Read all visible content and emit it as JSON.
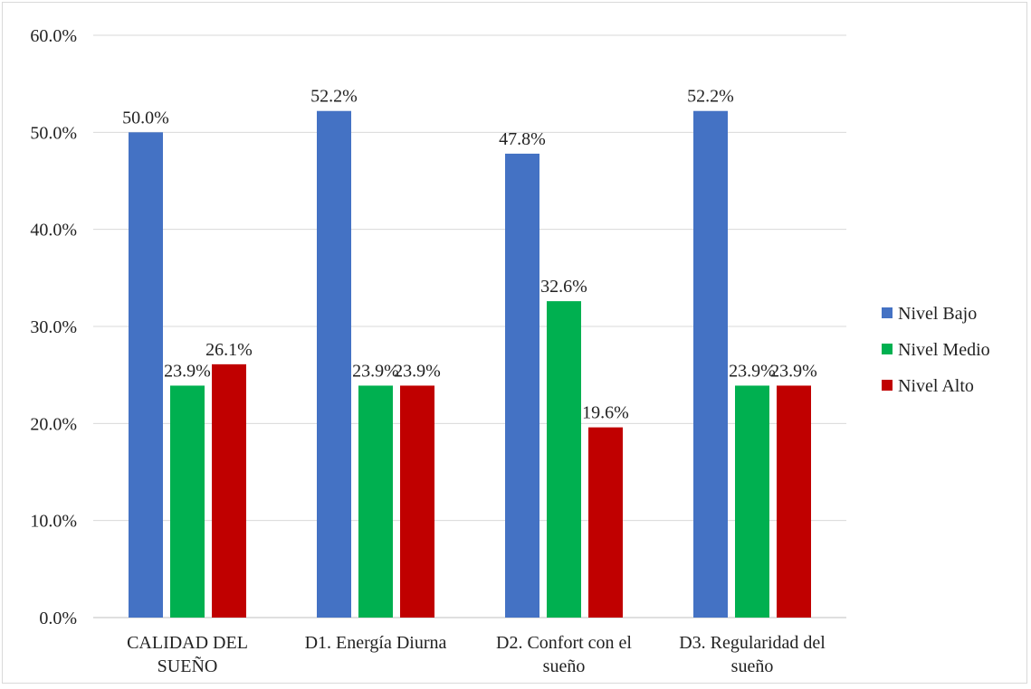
{
  "chart_data": {
    "type": "bar",
    "categories": [
      [
        "CALIDAD DEL",
        "SUEÑO"
      ],
      [
        "D1. Energía Diurna"
      ],
      [
        "D2. Confort con el",
        "sueño"
      ],
      [
        "D3. Regularidad del",
        "sueño"
      ]
    ],
    "series": [
      {
        "name": "Nivel Bajo",
        "color": "#4472C4",
        "values": [
          50.0,
          52.2,
          47.8,
          52.2
        ]
      },
      {
        "name": "Nivel Medio",
        "color": "#00B050",
        "values": [
          23.9,
          23.9,
          32.6,
          23.9
        ]
      },
      {
        "name": "Nivel Alto",
        "color": "#C00000",
        "values": [
          26.1,
          23.9,
          19.6,
          23.9
        ]
      }
    ],
    "data_labels": [
      [
        "50.0%",
        "23.9%",
        "26.1%"
      ],
      [
        "52.2%",
        "23.9%",
        "23.9%"
      ],
      [
        "47.8%",
        "32.6%",
        "19.6%"
      ],
      [
        "52.2%",
        "23.9%",
        "23.9%"
      ]
    ],
    "y_ticks": [
      0,
      10,
      20,
      30,
      40,
      50,
      60
    ],
    "y_tick_labels": [
      "0.0%",
      "10.0%",
      "20.0%",
      "30.0%",
      "40.0%",
      "50.0%",
      "60.0%"
    ],
    "ylim": [
      0,
      60
    ],
    "grid": true,
    "legend_position": "right",
    "title": "",
    "xlabel": "",
    "ylabel": ""
  }
}
